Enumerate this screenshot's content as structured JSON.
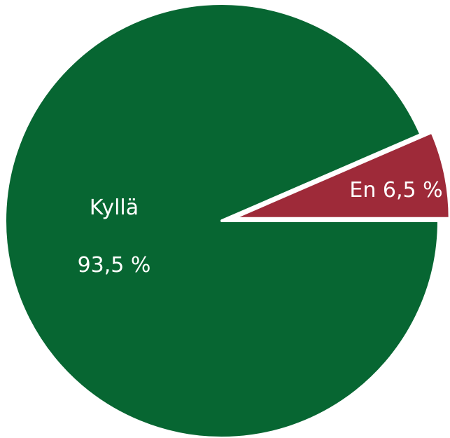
{
  "chart_data": {
    "type": "pie",
    "slices": [
      {
        "label": "Kyllä",
        "value_text": "93,5 %",
        "value": 93.5,
        "color": "#076632"
      },
      {
        "label": "En",
        "value_text": "6,5 %",
        "value": 6.5,
        "color": "#9e2a39"
      }
    ],
    "title": "",
    "legend": false
  }
}
